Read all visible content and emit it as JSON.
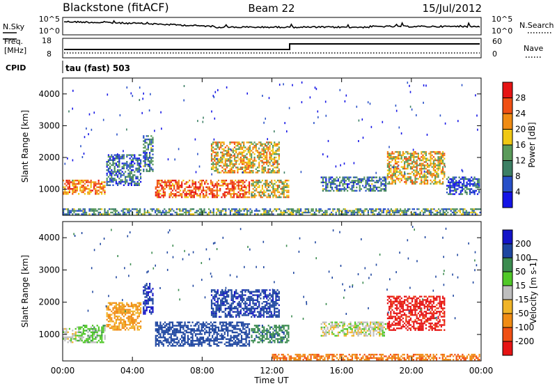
{
  "header": {
    "station": "Blackstone (fitACF)",
    "beam": "Beam 22",
    "date": "15/Jul/2012"
  },
  "aux": {
    "nsky_label": "N.Sky",
    "nsearch_label": "N.Search",
    "noise_tick_hi": "10^5",
    "noise_tick_lo": "10^0",
    "freq_label_1": "Freq.",
    "freq_label_2": "[MHz]",
    "freq_ticks": [
      "18",
      "8"
    ],
    "nave_label": "Nave",
    "nave_ticks": [
      "60",
      "0"
    ],
    "cpid_label": "CPID",
    "cpid_text": "tau (fast) 503"
  },
  "colors": {
    "power_scale": [
      "#1414e6",
      "#2850c8",
      "#3c7f64",
      "#5a9a5a",
      "#f0c814",
      "#f08c14",
      "#f05014",
      "#e61414"
    ],
    "velocity_scale": [
      "#e61414",
      "#f05014",
      "#f08c14",
      "#f0b428",
      "#bebebe",
      "#50c828",
      "#3c8c50",
      "#1e46a0",
      "#1414c8"
    ],
    "ground_scatter": "#bebebe"
  },
  "chart_data": [
    {
      "type": "heatmap",
      "panel": "power",
      "ylabel": "Slant Range [km]",
      "xlabel": "Time UT",
      "x_ticks": [
        "00:00",
        "04:00",
        "08:00",
        "12:00",
        "16:00",
        "20:00",
        "00:00"
      ],
      "x_range_hours": [
        0,
        24
      ],
      "y_ticks": [
        1000,
        2000,
        3000,
        4000
      ],
      "y_range_km": [
        180,
        4500
      ],
      "colorbar": {
        "label": "Power [dB]",
        "ticks": [
          "4",
          "8",
          "12",
          "16",
          "20",
          "24",
          "28"
        ],
        "range": [
          0,
          32
        ]
      },
      "regions": [
        {
          "t0": 0.0,
          "t1": 2.5,
          "r0": 800,
          "r1": 1300,
          "level": 0.72
        },
        {
          "t0": 2.5,
          "t1": 4.6,
          "r0": 1100,
          "r1": 2100,
          "level": 0.25
        },
        {
          "t0": 4.6,
          "t1": 5.3,
          "r0": 1500,
          "r1": 2700,
          "level": 0.3
        },
        {
          "t0": 5.3,
          "t1": 10.8,
          "r0": 700,
          "r1": 1300,
          "level": 0.78
        },
        {
          "t0": 8.5,
          "t1": 12.5,
          "r0": 1500,
          "r1": 2500,
          "level": 0.6
        },
        {
          "t0": 10.8,
          "t1": 13.0,
          "r0": 700,
          "r1": 1300,
          "level": 0.55
        },
        {
          "t0": 14.8,
          "t1": 18.6,
          "r0": 900,
          "r1": 1400,
          "level": 0.28
        },
        {
          "t0": 18.6,
          "t1": 22.0,
          "r0": 1100,
          "r1": 2200,
          "level": 0.6
        },
        {
          "t0": 22.0,
          "t1": 24.0,
          "r0": 800,
          "r1": 1400,
          "level": 0.2
        },
        {
          "t0": 0.0,
          "t1": 24.0,
          "r0": 180,
          "r1": 400,
          "level": 0.35
        }
      ]
    },
    {
      "type": "heatmap",
      "panel": "velocity",
      "ylabel": "Slant Range [km]",
      "xlabel": "Time UT",
      "x_ticks": [
        "00:00",
        "04:00",
        "08:00",
        "12:00",
        "16:00",
        "20:00",
        "00:00"
      ],
      "x_range_hours": [
        0,
        24
      ],
      "y_ticks": [
        1000,
        2000,
        3000,
        4000
      ],
      "y_range_km": [
        180,
        4500
      ],
      "colorbar": {
        "label": "Velocity [m s-1]",
        "ticks": [
          "200",
          "100",
          "50",
          "15",
          "-15",
          "-50",
          "-100",
          "-200"
        ],
        "range": [
          -250,
          250
        ]
      },
      "regions": [
        {
          "t0": 0.0,
          "t1": 0.8,
          "r0": 700,
          "r1": 1200,
          "vel": 0
        },
        {
          "t0": 0.8,
          "t1": 2.5,
          "r0": 700,
          "r1": 1300,
          "vel": 30
        },
        {
          "t0": 2.5,
          "t1": 4.6,
          "r0": 1100,
          "r1": 2000,
          "vel": -60
        },
        {
          "t0": 4.6,
          "t1": 5.3,
          "r0": 1600,
          "r1": 2600,
          "vel": 200
        },
        {
          "t0": 5.3,
          "t1": 10.8,
          "r0": 600,
          "r1": 1400,
          "vel": 160
        },
        {
          "t0": 8.5,
          "t1": 12.5,
          "r0": 1500,
          "r1": 2400,
          "vel": 180
        },
        {
          "t0": 10.8,
          "t1": 13.0,
          "r0": 700,
          "r1": 1300,
          "vel": 80
        },
        {
          "t0": 14.8,
          "t1": 18.6,
          "r0": 900,
          "r1": 1400,
          "vel": 0
        },
        {
          "t0": 18.6,
          "t1": 22.0,
          "r0": 1100,
          "r1": 2200,
          "vel": -220
        },
        {
          "t0": 12.0,
          "t1": 24.0,
          "r0": 180,
          "r1": 400,
          "vel": -90
        }
      ]
    }
  ]
}
